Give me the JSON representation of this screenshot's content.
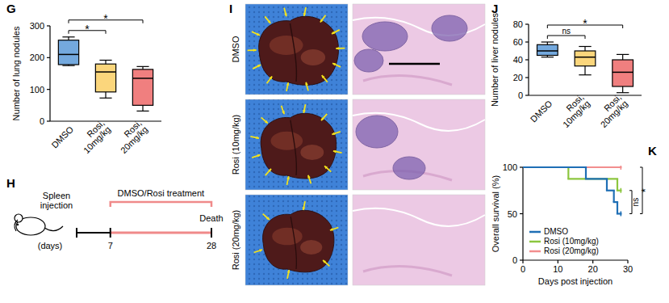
{
  "panel_labels": [
    "G",
    "H",
    "I",
    "J",
    "K"
  ],
  "chart_data": [
    {
      "type": "box",
      "y_label": "Number of lung nodules",
      "categories": [
        "DMSO",
        "Rosi, 10mg/kg",
        "Rosi, 20mg/kg"
      ],
      "colors": [
        "#74a9de",
        "#fbd67c",
        "#f07f7f"
      ],
      "min": [
        175,
        73,
        32
      ],
      "q1": [
        178,
        92,
        50
      ],
      "median": [
        210,
        155,
        135
      ],
      "q3": [
        255,
        180,
        163
      ],
      "max": [
        265,
        192,
        172
      ],
      "ylim": [
        0,
        300
      ],
      "yticks": [
        0,
        100,
        200,
        300
      ],
      "annotations": [
        {
          "from": 0,
          "to": 1,
          "text": "*"
        },
        {
          "from": 0,
          "to": 2,
          "text": "*"
        }
      ]
    },
    {
      "type": "box",
      "y_label": "Number of liver nodules",
      "categories": [
        "DMSO",
        "Rosi, 10mg/kg",
        "Rosi, 20mg/kg"
      ],
      "colors": [
        "#74a9de",
        "#fbd67c",
        "#f07f7f"
      ],
      "min": [
        43,
        23,
        3
      ],
      "q1": [
        45,
        33,
        10
      ],
      "median": [
        50,
        43,
        26
      ],
      "q3": [
        57,
        50,
        40
      ],
      "max": [
        60,
        55,
        46
      ],
      "ylim": [
        0,
        80
      ],
      "yticks": [
        0,
        20,
        40,
        60,
        80
      ],
      "annotations": [
        {
          "from": 0,
          "to": 1,
          "text": "ns"
        },
        {
          "from": 0,
          "to": 2,
          "text": "*"
        }
      ]
    },
    {
      "type": "step",
      "x_label": "Days post injection",
      "y_label": "Overall survival (%)",
      "series": [
        {
          "name": "DMSO",
          "color": "#1f6fb5",
          "x": [
            0,
            18,
            24,
            26,
            27,
            28
          ],
          "values": [
            100,
            87.5,
            75,
            62.5,
            50,
            50
          ]
        },
        {
          "name": "Rosi (10mg/kg)",
          "color": "#8cc63f",
          "x": [
            0,
            13,
            27,
            28
          ],
          "values": [
            100,
            87.5,
            75,
            75
          ]
        },
        {
          "name": "Rosi (20mg/kg)",
          "color": "#f28e8e",
          "x": [
            0,
            28
          ],
          "values": [
            100,
            100
          ]
        }
      ],
      "xlim": [
        0,
        30
      ],
      "xticks": [
        0,
        10,
        20,
        30
      ],
      "ylim": [
        0,
        100
      ],
      "yticks": [
        0,
        50,
        100
      ],
      "legend": "lower left",
      "annotations": [
        {
          "from": 1,
          "to": 0,
          "text": "ns"
        },
        {
          "from": 2,
          "to": 0,
          "text": "*"
        }
      ]
    }
  ],
  "diagram": {
    "treatment": "DMSO/Rosi treatment",
    "start_event": "Spleen injection",
    "end_event": "Death",
    "unit_label": "(days)",
    "xlim": [
      0,
      28
    ],
    "ticks": [
      7,
      28
    ]
  },
  "images": {
    "rows": [
      "DMSO",
      "Rosi (10mg/kg)",
      "Rosi (20mg/kg)"
    ]
  }
}
